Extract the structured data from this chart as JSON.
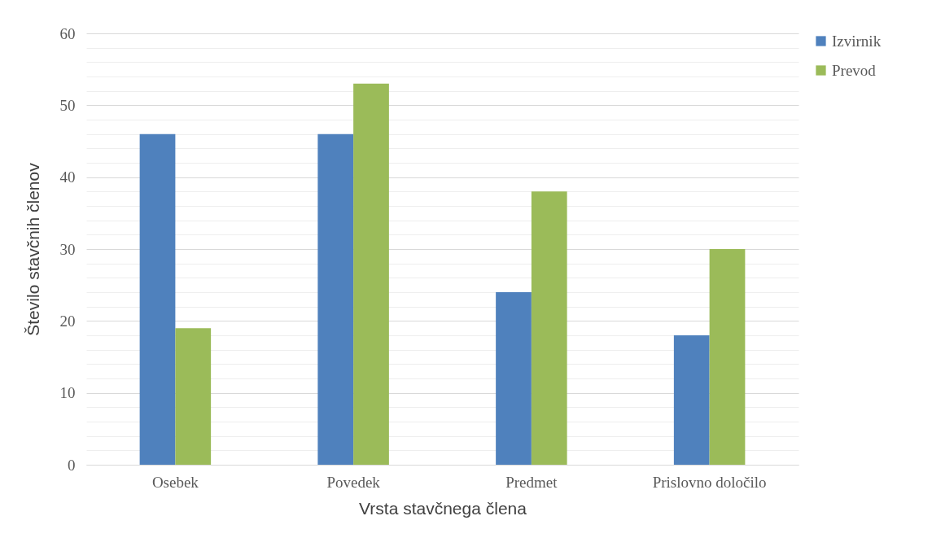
{
  "chart_data": {
    "type": "bar",
    "xlabel": "Vrsta stavčnega člena",
    "ylabel": "Število stavčnih členov",
    "categories": [
      "Osebek",
      "Povedek",
      "Predmet",
      "Prislovno določilo"
    ],
    "series": [
      {
        "name": "Izvirnik",
        "color": "#4f81bd",
        "values": [
          46,
          46,
          24,
          18
        ]
      },
      {
        "name": "Prevod",
        "color": "#9bbb59",
        "values": [
          19,
          53,
          38,
          30
        ]
      }
    ],
    "ylim": [
      0,
      60
    ],
    "yticks": [
      0,
      {
        "value": 2,
        "label": null
      },
      {
        "value": 4,
        "label": null
      },
      {
        "value": 6,
        "label": null
      },
      {
        "value": 8,
        "label": null
      },
      10,
      {
        "value": 12,
        "label": null
      },
      {
        "value": 14,
        "label": null
      },
      {
        "value": 16,
        "label": null
      },
      {
        "value": 18,
        "label": null
      },
      20,
      {
        "value": 22,
        "label": null
      },
      {
        "value": 24,
        "label": null
      },
      {
        "value": 26,
        "label": null
      },
      {
        "value": 28,
        "label": null
      },
      30,
      {
        "value": 32,
        "label": null
      },
      {
        "value": 34,
        "label": null
      },
      {
        "value": 36,
        "label": null
      },
      {
        "value": 38,
        "label": null
      },
      40,
      {
        "value": 42,
        "label": null
      },
      {
        "value": 44,
        "label": null
      },
      {
        "value": 46,
        "label": null
      },
      {
        "value": 48,
        "label": null
      },
      50,
      {
        "value": 52,
        "label": null
      },
      {
        "value": 54,
        "label": null
      },
      {
        "value": 56,
        "label": null
      },
      {
        "value": 58,
        "label": null
      },
      60
    ],
    "grid": "y",
    "legend": "right"
  }
}
